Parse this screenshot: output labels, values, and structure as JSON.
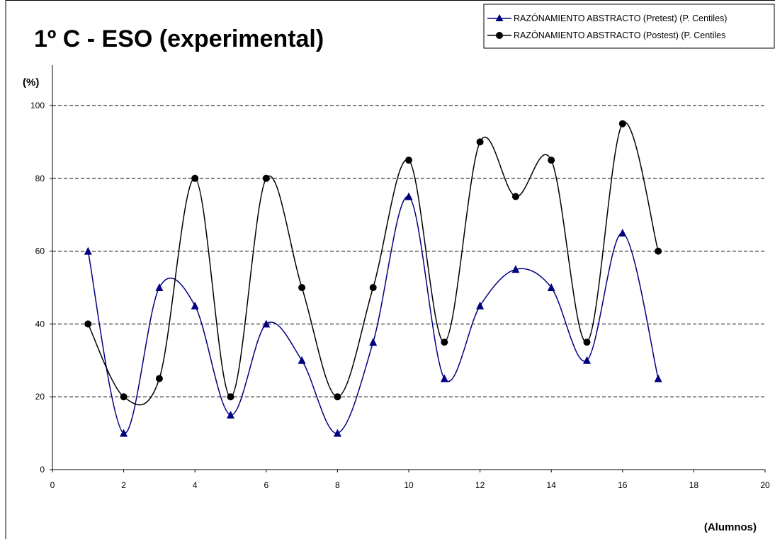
{
  "chart_data": {
    "type": "line",
    "title": "1º C - ESO (experimental)",
    "ylabel": "(%)",
    "xlabel": "(Alumnos)",
    "xlim": [
      0,
      20
    ],
    "ylim": [
      0,
      100
    ],
    "x_ticks": [
      0,
      2,
      4,
      6,
      8,
      10,
      12,
      14,
      16,
      18,
      20
    ],
    "y_ticks": [
      0,
      20,
      40,
      60,
      80,
      100
    ],
    "grid": "horizontal dashed",
    "legend_position": "top-right",
    "series": [
      {
        "name": "RAZÓNAMIENTO ABSTRACTO (Pretest) (P. Centiles)",
        "color": "#000080",
        "marker": "triangle",
        "x": [
          1,
          2,
          3,
          4,
          5,
          6,
          7,
          8,
          9,
          10,
          11,
          12,
          13,
          14,
          15,
          16,
          17
        ],
        "values": [
          60,
          10,
          50,
          45,
          15,
          40,
          30,
          10,
          35,
          75,
          25,
          45,
          55,
          50,
          30,
          65,
          25
        ]
      },
      {
        "name": "RAZÓNAMIENTO ABSTRACTO (Postest) (P. Centiles",
        "color": "#000000",
        "marker": "circle",
        "x": [
          1,
          2,
          3,
          4,
          5,
          6,
          7,
          8,
          9,
          10,
          11,
          12,
          13,
          14,
          15,
          16,
          17
        ],
        "values": [
          40,
          20,
          25,
          80,
          20,
          80,
          50,
          20,
          50,
          85,
          35,
          90,
          75,
          85,
          35,
          95,
          60
        ]
      }
    ]
  }
}
